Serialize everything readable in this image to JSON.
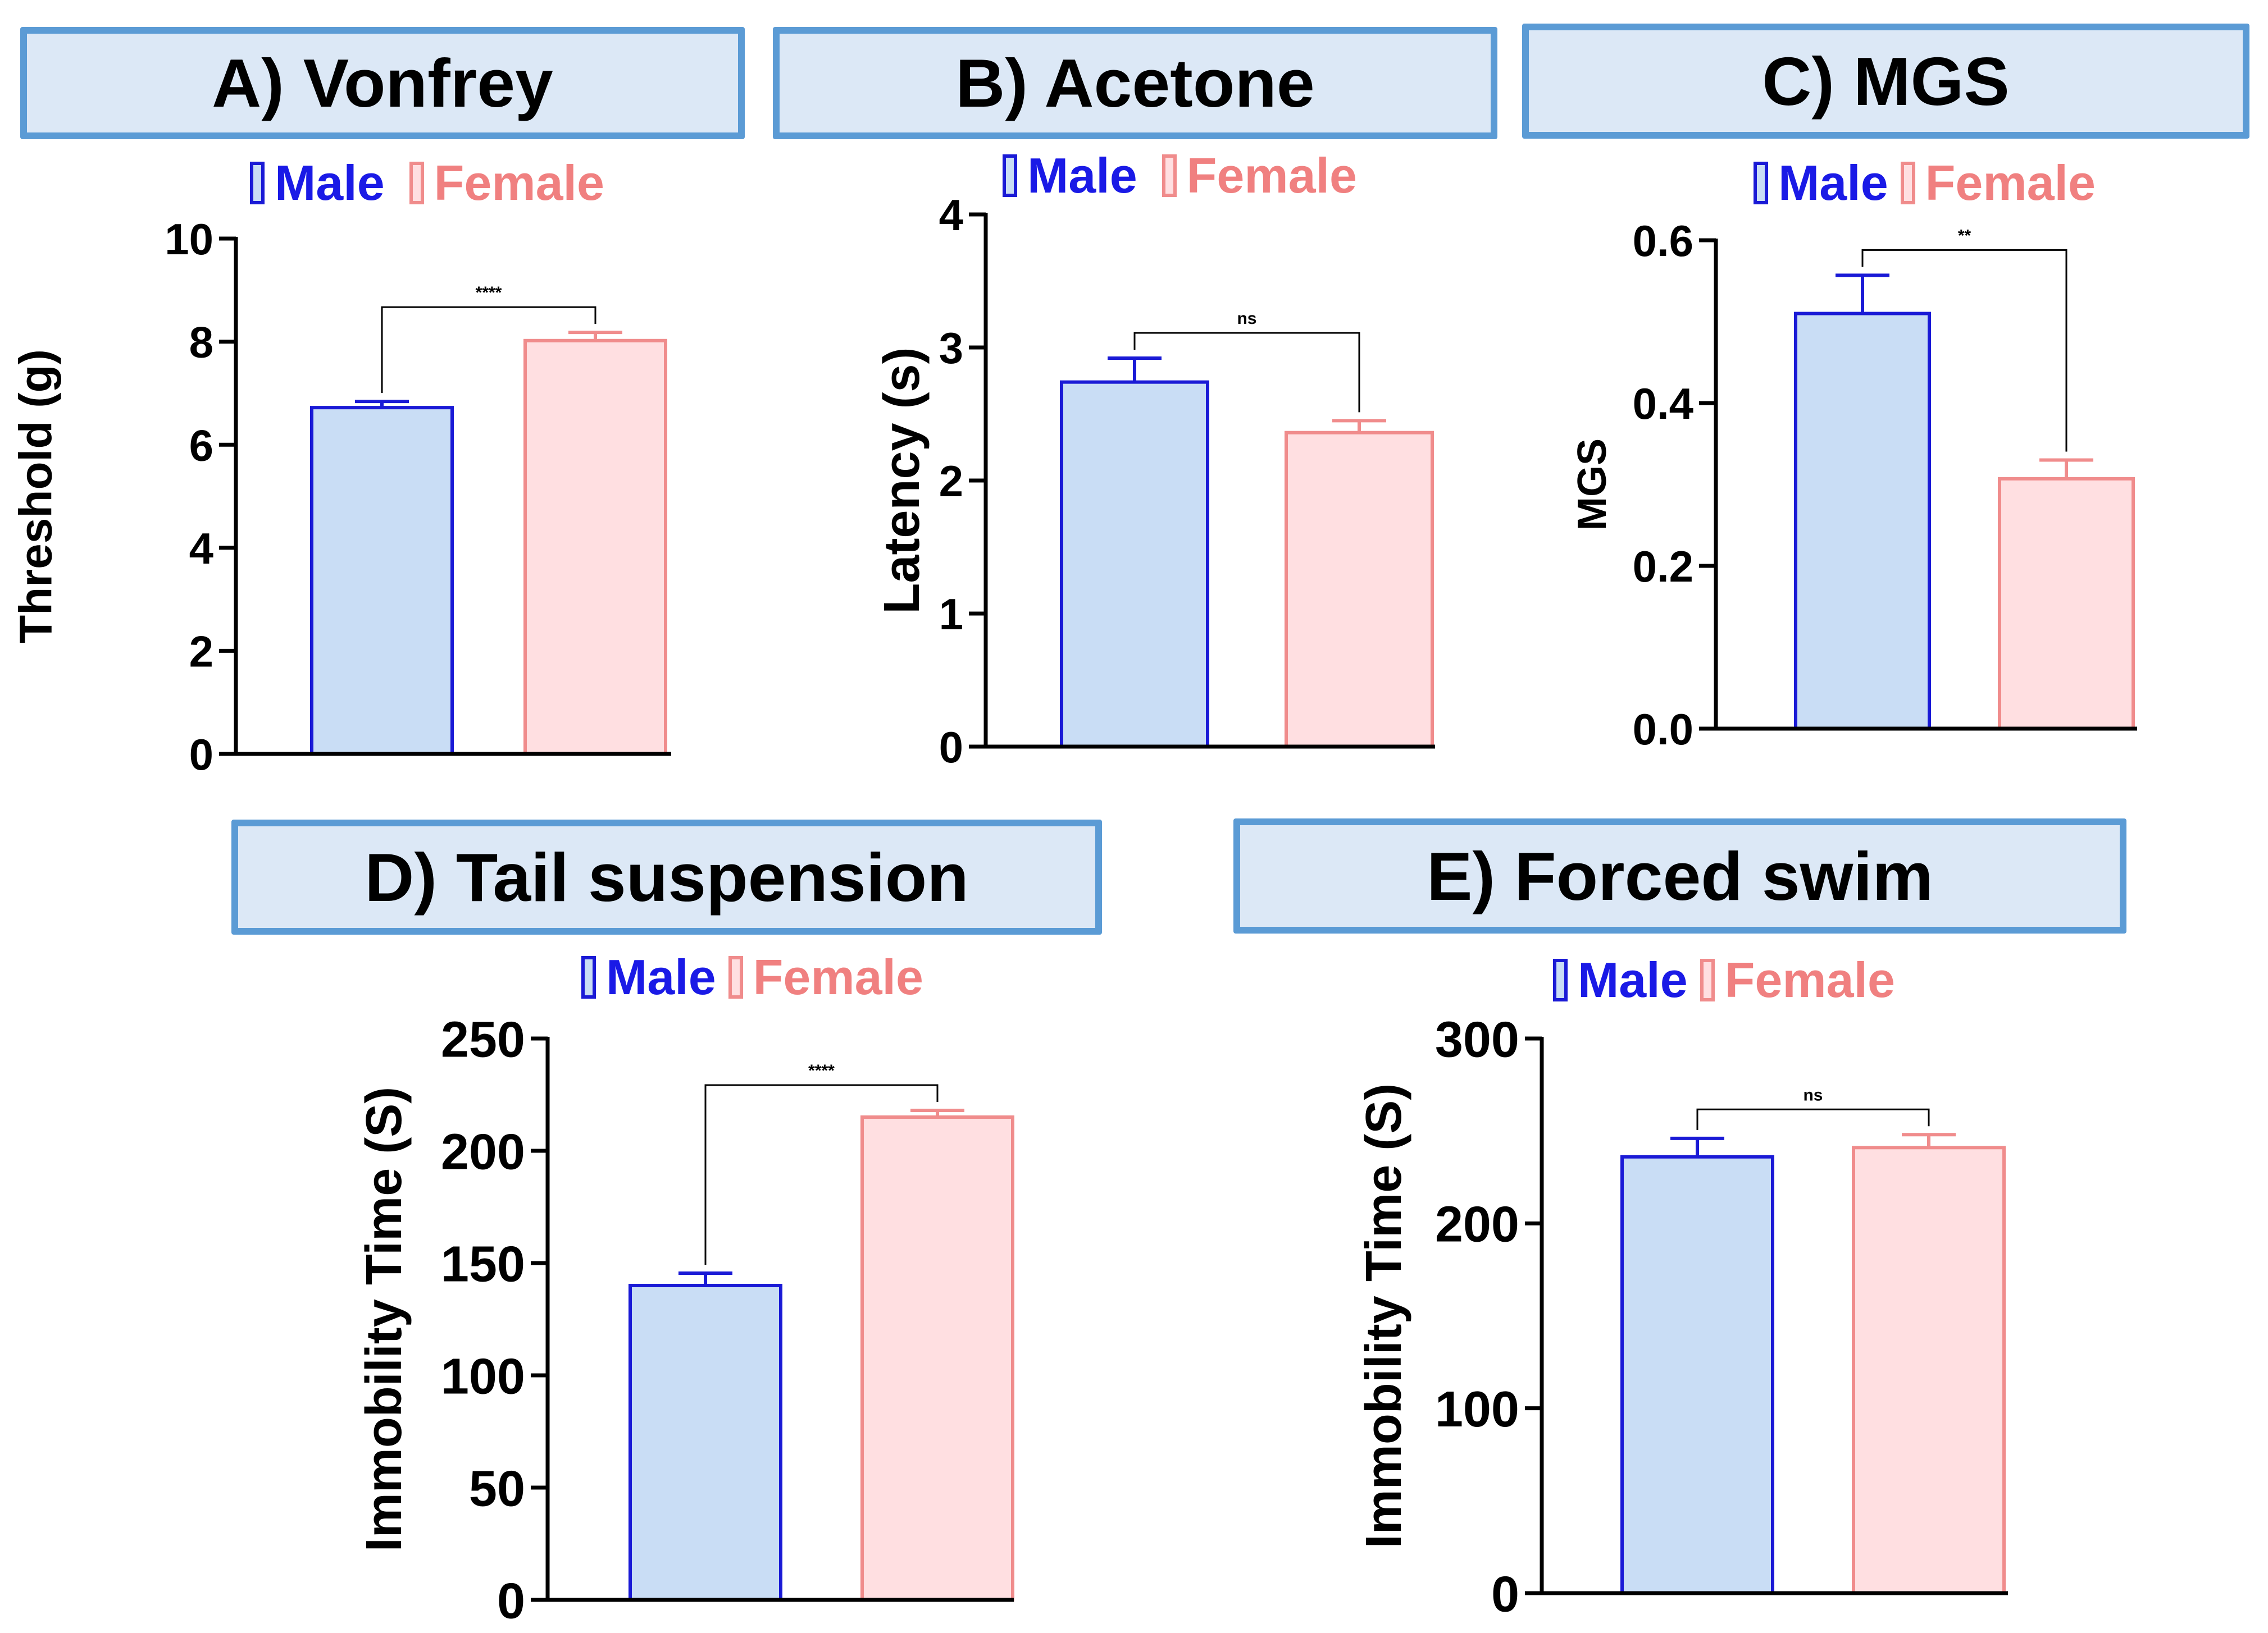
{
  "legend": {
    "male_label": "Male",
    "female_label": "Female"
  },
  "colors": {
    "male_fill": "#c9ddf5",
    "male_stroke": "#1a1ad6",
    "male_text": "#1a1ae6",
    "female_fill": "#ffdfe1",
    "female_stroke": "#f08c8c",
    "female_text": "#f08080",
    "title_bg": "#dce8f6",
    "title_border": "#5b9bd5"
  },
  "chart_data": [
    {
      "id": "a",
      "type": "bar",
      "title": "A) Vonfrey",
      "categories": [
        "Male",
        "Female"
      ],
      "values": [
        6.72,
        8.02
      ],
      "errors": [
        0.12,
        0.16
      ],
      "ylabel": "Threshold (g)",
      "xlabel": "",
      "ylim": [
        0,
        10
      ],
      "ticks": [
        0,
        2,
        4,
        6,
        8,
        10
      ],
      "tick_labels": [
        "0",
        "2",
        "4",
        "6",
        "8",
        "10"
      ],
      "significance": "****",
      "grid": false,
      "legend_position": "top-center"
    },
    {
      "id": "b",
      "type": "bar",
      "title": "B) Acetone",
      "categories": [
        "Male",
        "Female"
      ],
      "values": [
        2.74,
        2.36
      ],
      "errors": [
        0.18,
        0.09
      ],
      "ylabel": "Latency (s)",
      "xlabel": "",
      "ylim": [
        0,
        4
      ],
      "ticks": [
        0,
        1,
        2,
        3,
        4
      ],
      "tick_labels": [
        "0",
        "1",
        "2",
        "3",
        "4"
      ],
      "significance": "ns",
      "grid": false,
      "legend_position": "top-center"
    },
    {
      "id": "c",
      "type": "bar",
      "title": "C) MGS",
      "categories": [
        "Male",
        "Female"
      ],
      "values": [
        0.51,
        0.307
      ],
      "errors": [
        0.047,
        0.023
      ],
      "ylabel": "MGS",
      "xlabel": "",
      "ylim": [
        0,
        0.6
      ],
      "ticks": [
        0,
        0.2,
        0.4,
        0.6
      ],
      "tick_labels": [
        "0.0",
        "0.2",
        "0.4",
        "0.6"
      ],
      "significance": "**",
      "grid": false,
      "legend_position": "top-center"
    },
    {
      "id": "d",
      "type": "bar",
      "title": "D) Tail suspension",
      "categories": [
        "Male",
        "Female"
      ],
      "values": [
        140,
        215
      ],
      "errors": [
        5.5,
        3
      ],
      "ylabel": "Immobility Time (S)",
      "xlabel": "",
      "ylim": [
        0,
        250
      ],
      "ticks": [
        0,
        50,
        100,
        150,
        200,
        250
      ],
      "tick_labels": [
        "0",
        "50",
        "100",
        "150",
        "200",
        "250"
      ],
      "significance": "****",
      "grid": false,
      "legend_position": "top-center"
    },
    {
      "id": "e",
      "type": "bar",
      "title": "E) Forced swim",
      "categories": [
        "Male",
        "Female"
      ],
      "values": [
        236,
        241
      ],
      "errors": [
        10,
        7
      ],
      "ylabel": "Immobility Time (S)",
      "xlabel": "",
      "ylim": [
        0,
        300
      ],
      "ticks": [
        0,
        100,
        200,
        300
      ],
      "tick_labels": [
        "0",
        "100",
        "200",
        "300"
      ],
      "significance": "ns",
      "grid": false,
      "legend_position": "top-center"
    }
  ]
}
